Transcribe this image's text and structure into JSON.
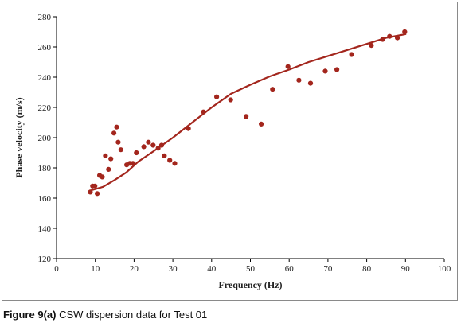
{
  "caption": {
    "label": "Figure 9(a)",
    "text": " CSW dispersion data for Test 01"
  },
  "colors": {
    "series": "#a3261d",
    "frame": "#8a8a8a",
    "axis": "#000000"
  },
  "chart_data": {
    "type": "scatter",
    "title": "",
    "xlabel": "Frequency (Hz)",
    "ylabel": "Phase velocity (m/s)",
    "xlim": [
      0,
      100
    ],
    "ylim": [
      120,
      280
    ],
    "xticks": [
      0,
      10,
      20,
      30,
      40,
      50,
      60,
      70,
      80,
      90,
      100
    ],
    "yticks": [
      120,
      140,
      160,
      180,
      200,
      220,
      240,
      260,
      280
    ],
    "grid": false,
    "legend": "none",
    "series": [
      {
        "kind": "scatter",
        "points": [
          [
            8.7,
            164
          ],
          [
            9.3,
            168
          ],
          [
            9.9,
            168
          ],
          [
            10.5,
            163
          ],
          [
            11.1,
            175
          ],
          [
            11.8,
            174
          ],
          [
            12.6,
            188
          ],
          [
            13.4,
            179
          ],
          [
            14.0,
            186
          ],
          [
            14.8,
            203
          ],
          [
            15.5,
            207
          ],
          [
            15.9,
            197
          ],
          [
            16.6,
            192
          ],
          [
            18.1,
            182
          ],
          [
            18.9,
            183
          ],
          [
            19.7,
            183
          ],
          [
            20.6,
            190
          ],
          [
            22.5,
            194
          ],
          [
            23.7,
            197
          ],
          [
            24.9,
            195
          ],
          [
            26.2,
            193
          ],
          [
            27.1,
            195
          ],
          [
            27.8,
            188
          ],
          [
            29.2,
            185
          ],
          [
            30.5,
            183
          ],
          [
            34.0,
            206
          ],
          [
            37.9,
            217
          ],
          [
            41.3,
            227
          ],
          [
            44.9,
            225
          ],
          [
            48.9,
            214
          ],
          [
            52.8,
            209
          ],
          [
            55.7,
            232
          ],
          [
            59.7,
            247
          ],
          [
            62.5,
            238
          ],
          [
            65.5,
            236
          ],
          [
            69.3,
            244
          ],
          [
            72.3,
            245
          ],
          [
            76.1,
            255
          ],
          [
            81.2,
            261
          ],
          [
            84.1,
            265
          ],
          [
            85.9,
            267
          ],
          [
            87.9,
            266
          ],
          [
            89.8,
            270
          ]
        ]
      },
      {
        "kind": "line",
        "points": [
          [
            8.7,
            165
          ],
          [
            12,
            167.5
          ],
          [
            15,
            172
          ],
          [
            18,
            177
          ],
          [
            21,
            184
          ],
          [
            25,
            191
          ],
          [
            30,
            200
          ],
          [
            35,
            210
          ],
          [
            40,
            220
          ],
          [
            45,
            229
          ],
          [
            50,
            235
          ],
          [
            55,
            240.5
          ],
          [
            60,
            245
          ],
          [
            65,
            250
          ],
          [
            70,
            254
          ],
          [
            75,
            258
          ],
          [
            80,
            262
          ],
          [
            85,
            266
          ],
          [
            90,
            268.5
          ]
        ]
      }
    ]
  }
}
